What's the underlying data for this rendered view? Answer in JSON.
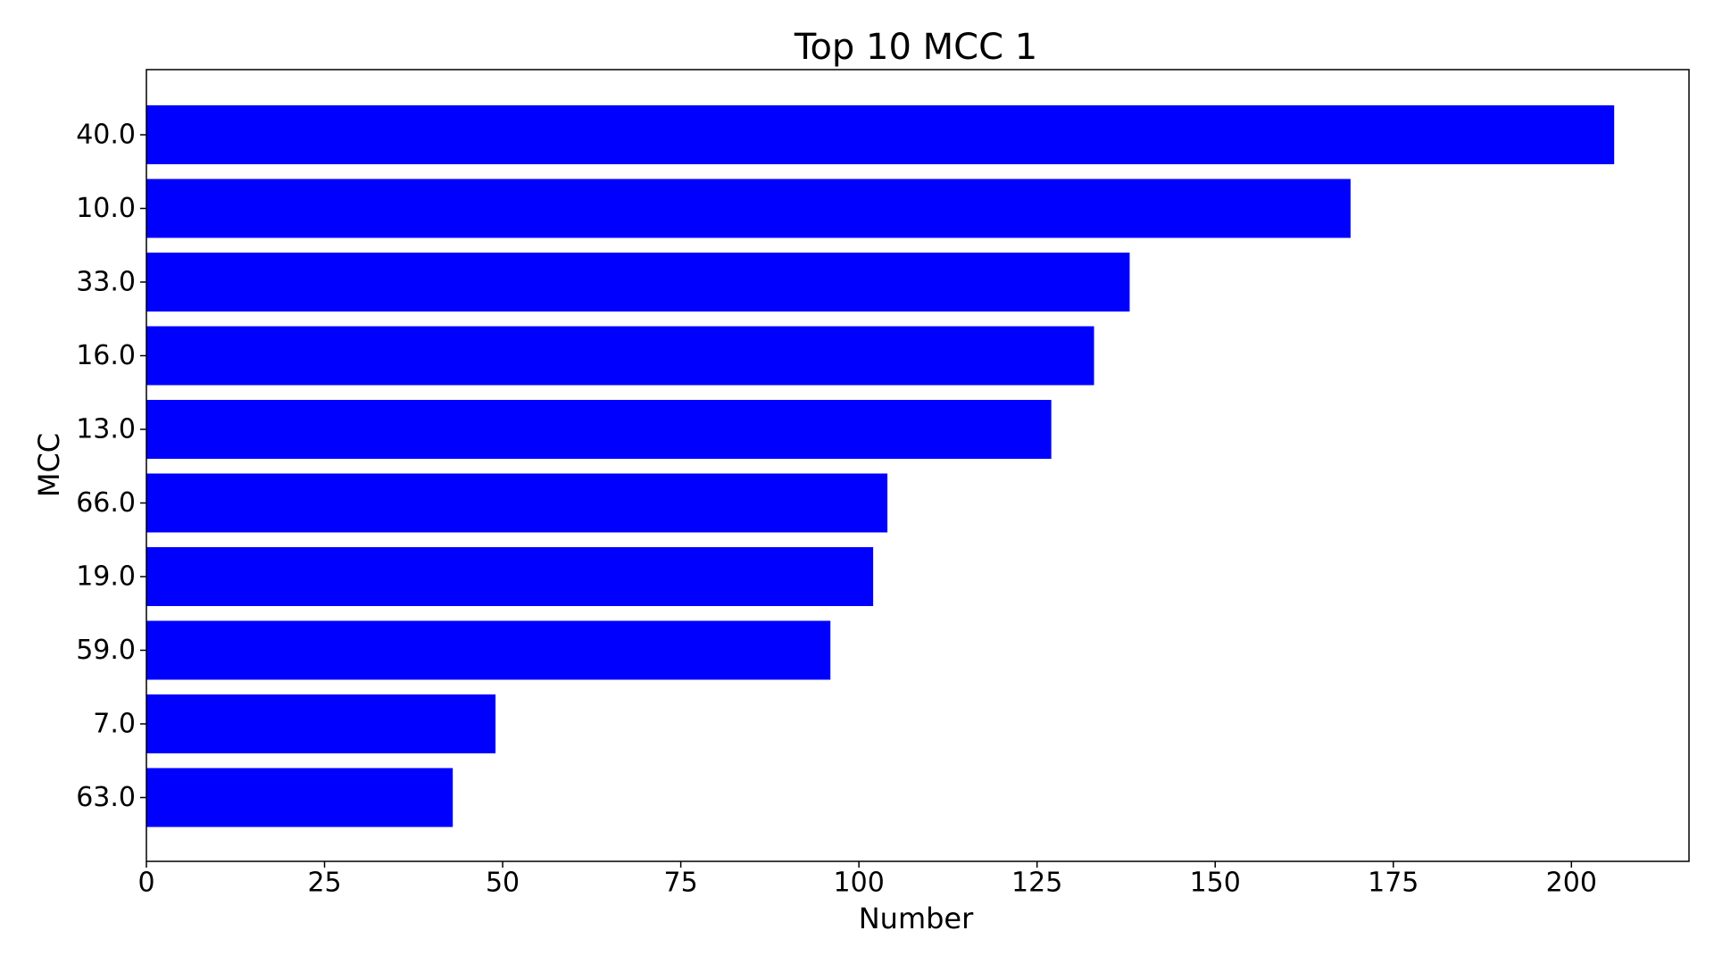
{
  "chart_data": {
    "type": "bar",
    "orientation": "horizontal",
    "title": "Top 10 MCC 1",
    "xlabel": "Number",
    "ylabel": "MCC",
    "categories": [
      "40.0",
      "10.0",
      "33.0",
      "16.0",
      "13.0",
      "66.0",
      "19.0",
      "59.0",
      "7.0",
      "63.0"
    ],
    "values": [
      206,
      169,
      138,
      133,
      127,
      104,
      102,
      96,
      49,
      43
    ],
    "xlim": [
      0,
      216.5
    ],
    "xticks": [
      0,
      25,
      50,
      75,
      100,
      125,
      150,
      175,
      200
    ],
    "grid": false,
    "bar_color": "#0000ff",
    "axes_color": "#000000",
    "background": "#ffffff"
  }
}
